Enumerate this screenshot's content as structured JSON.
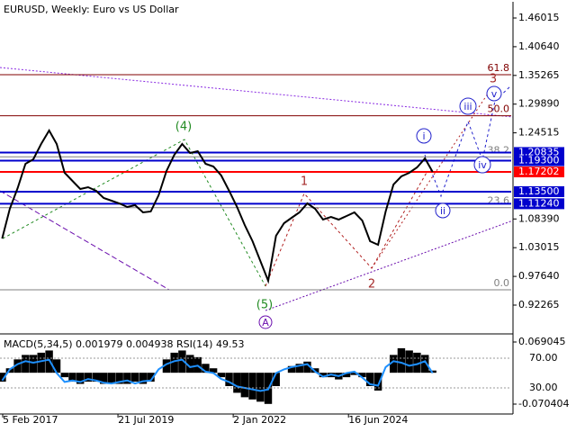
{
  "chart_data": {
    "type": "line",
    "title": "EURUSD, Weekly:  Euro vs US Dollar",
    "color": "#000000",
    "x": [
      "2017-02",
      "2017-04",
      "2017-06",
      "2017-08",
      "2017-10",
      "2017-12",
      "2018-02",
      "2018-04",
      "2018-06",
      "2018-08",
      "2018-10",
      "2018-12",
      "2019-02",
      "2019-04",
      "2019-06",
      "2019-08",
      "2019-10",
      "2019-12",
      "2020-02",
      "2020-04",
      "2020-06",
      "2020-08",
      "2020-10",
      "2020-12",
      "2021-02",
      "2021-04",
      "2021-06",
      "2021-08",
      "2021-10",
      "2021-12",
      "2022-02",
      "2022-04",
      "2022-06",
      "2022-08",
      "2022-10",
      "2022-12",
      "2023-02",
      "2023-04",
      "2023-06",
      "2023-08",
      "2023-10",
      "2023-12",
      "2024-02",
      "2024-04",
      "2024-06",
      "2024-08",
      "2024-10",
      "2024-12",
      "2025-02",
      "2025-04",
      "2025-06",
      "2025-08",
      "2025-10",
      "2025-12",
      "2026-02",
      "2026-04"
    ],
    "values": [
      1.0473,
      1.103,
      1.1417,
      1.1872,
      1.1956,
      1.2243,
      1.2495,
      1.2243,
      1.1704,
      1.1552,
      1.14,
      1.1434,
      1.1367,
      1.1232,
      1.1181,
      1.1131,
      1.1063,
      1.1097,
      1.0962,
      1.0979,
      1.1282,
      1.1737,
      1.204,
      1.2243,
      1.2074,
      1.2108,
      1.1872,
      1.1821,
      1.1653,
      1.1367,
      1.1063,
      1.0726,
      1.0423,
      1.0052,
      0.9682,
      1.0524,
      1.076,
      1.0861,
      1.0962,
      1.1131,
      1.103,
      1.0827,
      1.0878,
      1.0827,
      1.0895,
      1.0962,
      1.081,
      1.0423,
      1.0355,
      1.0979,
      1.1485,
      1.1636,
      1.1704,
      1.1805,
      1.1973,
      1.172
    ],
    "xlim": [
      "2017-01-15",
      "2027-12-03"
    ],
    "xticks": [
      {
        "value": "2017-02-05",
        "label": "5 Feb 2017"
      },
      {
        "value": "2019-07-21",
        "label": "21 Jul 2019"
      },
      {
        "value": "2022-01-02",
        "label": "2 Jan 2022"
      },
      {
        "value": "2024-06-16",
        "label": "16 Jun 2024"
      }
    ],
    "ylim": [
      0.87042,
      1.49048
    ],
    "yticks": [
      1.46015,
      {
        "value": 1.4064,
        "label": "1.40640"
      },
      1.35265,
      {
        "value": 1.2989,
        "label": "1.29890"
      },
      1.24515,
      {
        "value": 1.0839,
        "label": "1.08390"
      },
      1.03015,
      {
        "value": 0.9764,
        "label": "0.97640"
      },
      0.92265
    ],
    "levels": [
      {
        "value": 1.20835,
        "color": "#0000cd"
      },
      {
        "value": {
          "value": 1.193,
          "label": "1.19300"
        },
        "color": "#0000cd"
      },
      {
        "value": 1.17202,
        "color": "#ff0000"
      },
      {
        "value": {
          "value": 1.135,
          "label": "1.13500"
        },
        "color": "#0000cd"
      },
      {
        "value": {
          "value": 1.1124,
          "label": "1.11240"
        },
        "color": "#0000cd"
      }
    ],
    "fib_levels": [
      {
        "level": 61.8,
        "price": 1.354,
        "color": "#800000"
      },
      {
        "level": {
          "value": 50,
          "label": "50.0"
        },
        "price": 1.2772,
        "color": "#800000"
      },
      {
        "level": 38.2,
        "price": 1.2002,
        "color": "#808080"
      },
      {
        "level": 23.6,
        "price": 1.1051,
        "color": "#808080"
      },
      {
        "level": {
          "value": 0,
          "label": "0.0"
        },
        "price": 0.9513,
        "color": "#808080"
      }
    ],
    "annotations": [
      "(4)",
      "(5)",
      "A",
      "1",
      "2",
      "3",
      "i",
      "ii",
      "iii",
      "iv",
      "v"
    ],
    "indicator": {
      "title": "MACD(5,34,5) 0.001979 0.004938 RSI(14) 49.53",
      "macd": {
        "color": "#000000",
        "values": [
          -0.02,
          0.01,
          0.03,
          0.04,
          0.04,
          0.045,
          0.05,
          0.03,
          -0.01,
          -0.02,
          -0.025,
          -0.02,
          -0.02,
          -0.025,
          -0.025,
          -0.025,
          -0.025,
          -0.02,
          -0.025,
          -0.02,
          0.0,
          0.03,
          0.045,
          0.05,
          0.04,
          0.035,
          0.02,
          0.01,
          -0.01,
          -0.03,
          -0.045,
          -0.055,
          -0.06,
          -0.065,
          -0.07,
          -0.03,
          0.0,
          0.015,
          0.02,
          0.025,
          0.01,
          -0.01,
          -0.01,
          -0.015,
          -0.01,
          -0.005,
          -0.01,
          -0.03,
          -0.04,
          0.0,
          0.04,
          0.055,
          0.05,
          0.045,
          0.04,
          0.005
        ],
        "ylim": [
          -0.08859,
          0.08319
        ],
        "yticks": [
          0.069045,
          -0.070404
        ]
      },
      "rsi": {
        "color": "#1e90ff",
        "values": [
          40,
          55,
          62,
          66,
          64,
          66,
          68,
          50,
          38,
          40,
          38,
          42,
          40,
          37,
          36,
          38,
          40,
          36,
          39,
          40,
          55,
          62,
          66,
          68,
          58,
          60,
          52,
          50,
          42,
          38,
          32,
          30,
          28,
          26,
          28,
          50,
          55,
          58,
          60,
          62,
          52,
          45,
          48,
          46,
          50,
          52,
          44,
          35,
          33,
          58,
          66,
          64,
          60,
          62,
          66,
          50
        ],
        "ylim": [
          -2.7,
          100.3
        ],
        "yticks": [
          {
            "value": 70,
            "label": "70.00"
          },
          {
            "value": 30,
            "label": "30.00"
          }
        ]
      }
    }
  }
}
